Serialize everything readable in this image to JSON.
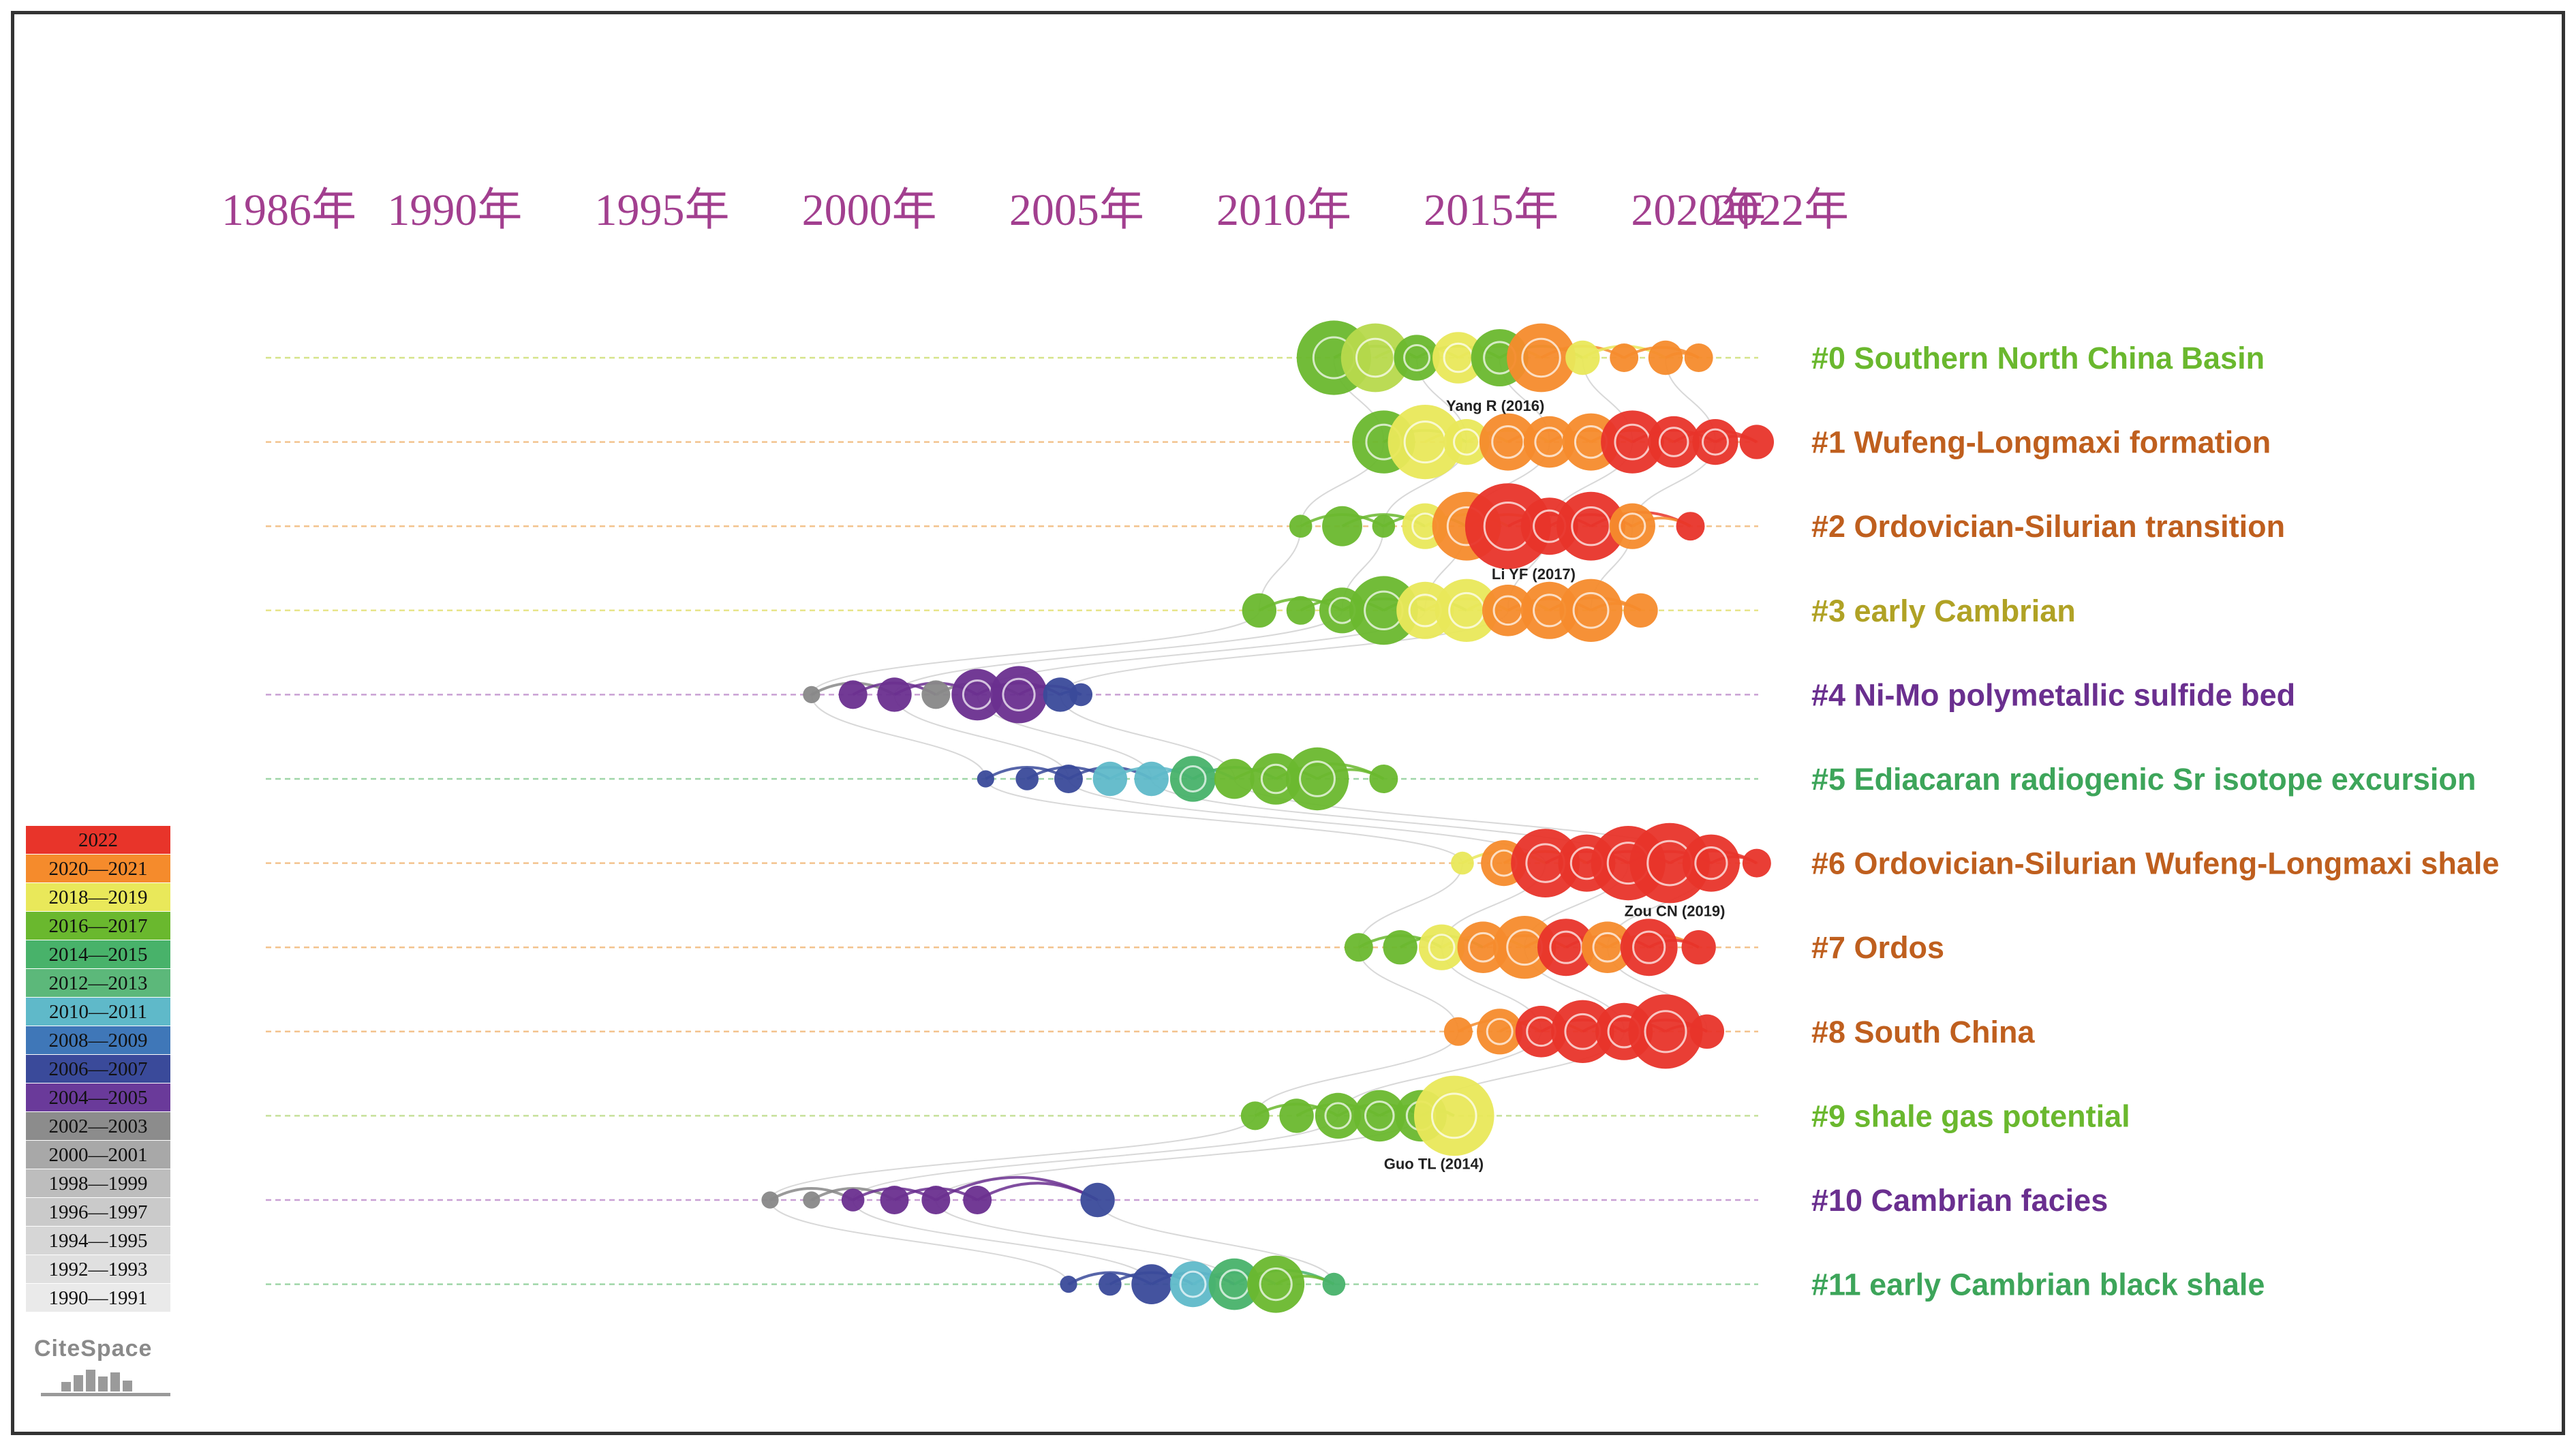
{
  "timeline": {
    "year_labels": [
      {
        "text": "1986年",
        "year": 1986
      },
      {
        "text": "1990年",
        "year": 1990
      },
      {
        "text": "1995年",
        "year": 1995
      },
      {
        "text": "2000年",
        "year": 2000
      },
      {
        "text": "2005年",
        "year": 2005
      },
      {
        "text": "2010年",
        "year": 2010
      },
      {
        "text": "2015年",
        "year": 2015
      },
      {
        "text": "2020年",
        "year": 2020
      },
      {
        "text": "2022年",
        "year": 2022
      }
    ],
    "clusters": [
      {
        "label": "#0 Southern North China Basin",
        "color": "#6ab82e",
        "line_color": "#d6e48a",
        "span": [
          2011.5,
          2020.5
        ],
        "nodes": [
          [
            2011.6,
            1.3,
            "#6ab82e"
          ],
          [
            2012.6,
            1.2,
            "#b7d94c"
          ],
          [
            2013.6,
            0.8,
            "#6ab82e"
          ],
          [
            2014.6,
            0.9,
            "#e9e85a"
          ],
          [
            2015.6,
            1.0,
            "#6ab82e"
          ],
          [
            2016.6,
            1.2,
            "#f58b2c"
          ],
          [
            2017.6,
            0.6,
            "#e9e85a"
          ],
          [
            2018.6,
            0.5,
            "#f58b2c"
          ],
          [
            2019.6,
            0.6,
            "#f58b2c"
          ],
          [
            2020.4,
            0.5,
            "#f58b2c"
          ]
        ]
      },
      {
        "label": "#1 Wufeng-Longmaxi formation",
        "color": "#bf5f1e",
        "line_color": "#f3c38e",
        "span": [
          2012.5,
          2022.0
        ],
        "nodes": [
          [
            2012.8,
            1.1,
            "#6ab82e"
          ],
          [
            2013.8,
            1.3,
            "#e9e85a"
          ],
          [
            2014.8,
            0.8,
            "#e9e85a"
          ],
          [
            2015.8,
            1.0,
            "#f58b2c"
          ],
          [
            2016.8,
            0.9,
            "#f58b2c"
          ],
          [
            2017.8,
            1.0,
            "#f58b2c"
          ],
          [
            2018.8,
            1.1,
            "#e8342a"
          ],
          [
            2019.8,
            0.9,
            "#e8342a"
          ],
          [
            2020.8,
            0.8,
            "#e8342a"
          ],
          [
            2021.8,
            0.6,
            "#e8342a"
          ]
        ]
      },
      {
        "label": "#2 Ordovician-Silurian transition",
        "color": "#bf5f1e",
        "line_color": "#f3c38e",
        "span": [
          2010.7,
          2020.8
        ],
        "nodes": [
          [
            2010.8,
            0.4,
            "#6ab82e"
          ],
          [
            2011.8,
            0.7,
            "#6ab82e"
          ],
          [
            2012.8,
            0.4,
            "#6ab82e"
          ],
          [
            2013.8,
            0.8,
            "#e9e85a"
          ],
          [
            2014.8,
            1.2,
            "#f58b2c"
          ],
          [
            2015.8,
            1.5,
            "#e8342a"
          ],
          [
            2016.8,
            1.0,
            "#e8342a"
          ],
          [
            2017.8,
            1.2,
            "#e8342a"
          ],
          [
            2018.8,
            0.8,
            "#f58b2c"
          ],
          [
            2020.2,
            0.5,
            "#e8342a"
          ]
        ]
      },
      {
        "label": "#3 early Cambrian",
        "color": "#b0a225",
        "line_color": "#e7e58a",
        "span": [
          2009.5,
          2019.2
        ],
        "nodes": [
          [
            2009.8,
            0.6,
            "#6ab82e"
          ],
          [
            2010.8,
            0.5,
            "#6ab82e"
          ],
          [
            2011.8,
            0.8,
            "#6ab82e"
          ],
          [
            2012.8,
            1.2,
            "#6ab82e"
          ],
          [
            2013.8,
            1.0,
            "#e9e85a"
          ],
          [
            2014.8,
            1.1,
            "#e9e85a"
          ],
          [
            2015.8,
            0.9,
            "#f58b2c"
          ],
          [
            2016.8,
            1.0,
            "#f58b2c"
          ],
          [
            2017.8,
            1.1,
            "#f58b2c"
          ],
          [
            2019.0,
            0.6,
            "#f58b2c"
          ]
        ]
      },
      {
        "label": "#4 Ni-Mo polymetallic sulfide bed",
        "color": "#6a2f8f",
        "line_color": "#c9a0d4",
        "span": [
          1998.8,
          2005.6
        ],
        "nodes": [
          [
            1999.0,
            0.3,
            "#888888"
          ],
          [
            2000.0,
            0.5,
            "#6a2f8f"
          ],
          [
            2001.0,
            0.6,
            "#6a2f8f"
          ],
          [
            2002.0,
            0.5,
            "#888888"
          ],
          [
            2003.0,
            0.9,
            "#6a2f8f"
          ],
          [
            2004.0,
            1.0,
            "#6a2f8f"
          ],
          [
            2005.0,
            0.6,
            "#3a4a9a"
          ],
          [
            2005.5,
            0.4,
            "#3a4a9a"
          ]
        ]
      },
      {
        "label": "#5 Ediacaran radiogenic Sr isotope excursion",
        "color": "#3da55a",
        "line_color": "#9fd6a8",
        "span": [
          2003.0,
          2013.0
        ],
        "nodes": [
          [
            2003.2,
            0.3,
            "#3a4a9a"
          ],
          [
            2004.2,
            0.4,
            "#3a4a9a"
          ],
          [
            2005.2,
            0.5,
            "#3a4a9a"
          ],
          [
            2006.2,
            0.6,
            "#5fb9c9"
          ],
          [
            2007.2,
            0.6,
            "#5fb9c9"
          ],
          [
            2008.2,
            0.8,
            "#48b26a"
          ],
          [
            2009.2,
            0.7,
            "#6ab82e"
          ],
          [
            2010.2,
            0.9,
            "#6ab82e"
          ],
          [
            2011.2,
            1.1,
            "#6ab82e"
          ],
          [
            2012.8,
            0.5,
            "#6ab82e"
          ]
        ]
      },
      {
        "label": "#6 Ordovician-Silurian Wufeng-Longmaxi shale",
        "color": "#bf5f1e",
        "line_color": "#f3c38e",
        "span": [
          2014.5,
          2022.0
        ],
        "nodes": [
          [
            2014.7,
            0.4,
            "#e9e85a"
          ],
          [
            2015.7,
            0.8,
            "#f58b2c"
          ],
          [
            2016.7,
            1.2,
            "#e8342a"
          ],
          [
            2017.7,
            1.0,
            "#e8342a"
          ],
          [
            2018.7,
            1.3,
            "#e8342a"
          ],
          [
            2019.7,
            1.4,
            "#e8342a"
          ],
          [
            2020.7,
            1.0,
            "#e8342a"
          ],
          [
            2021.8,
            0.5,
            "#e8342a"
          ]
        ]
      },
      {
        "label": "#7 Ordos",
        "color": "#bf5f1e",
        "line_color": "#f3c38e",
        "span": [
          2012.0,
          2020.8
        ],
        "nodes": [
          [
            2012.2,
            0.5,
            "#6ab82e"
          ],
          [
            2013.2,
            0.6,
            "#6ab82e"
          ],
          [
            2014.2,
            0.8,
            "#e9e85a"
          ],
          [
            2015.2,
            0.9,
            "#f58b2c"
          ],
          [
            2016.2,
            1.1,
            "#f58b2c"
          ],
          [
            2017.2,
            1.0,
            "#e8342a"
          ],
          [
            2018.2,
            0.9,
            "#f58b2c"
          ],
          [
            2019.2,
            1.0,
            "#e8342a"
          ],
          [
            2020.4,
            0.6,
            "#e8342a"
          ]
        ]
      },
      {
        "label": "#8 South China",
        "color": "#bf5f1e",
        "line_color": "#f3c38e",
        "span": [
          2014.4,
          2021.0
        ],
        "nodes": [
          [
            2014.6,
            0.5,
            "#f58b2c"
          ],
          [
            2015.6,
            0.8,
            "#f58b2c"
          ],
          [
            2016.6,
            0.9,
            "#e8342a"
          ],
          [
            2017.6,
            1.1,
            "#e8342a"
          ],
          [
            2018.6,
            1.0,
            "#e8342a"
          ],
          [
            2019.6,
            1.3,
            "#e8342a"
          ],
          [
            2020.6,
            0.6,
            "#e8342a"
          ]
        ]
      },
      {
        "label": "#9 shale gas potential",
        "color": "#6ab82e",
        "line_color": "#c6e09a",
        "span": [
          2009.5,
          2014.8
        ],
        "nodes": [
          [
            2009.7,
            0.5,
            "#6ab82e"
          ],
          [
            2010.7,
            0.6,
            "#6ab82e"
          ],
          [
            2011.7,
            0.8,
            "#6ab82e"
          ],
          [
            2012.7,
            0.9,
            "#6ab82e"
          ],
          [
            2013.7,
            0.9,
            "#6ab82e"
          ],
          [
            2014.5,
            1.4,
            "#e9e85a"
          ]
        ]
      },
      {
        "label": "#10 Cambrian facies",
        "color": "#6a2f8f",
        "line_color": "#c9a0d4",
        "span": [
          1997.8,
          2006.0
        ],
        "nodes": [
          [
            1998.0,
            0.3,
            "#888888"
          ],
          [
            1999.0,
            0.3,
            "#888888"
          ],
          [
            2000.0,
            0.4,
            "#6a2f8f"
          ],
          [
            2001.0,
            0.5,
            "#6a2f8f"
          ],
          [
            2002.0,
            0.5,
            "#6a2f8f"
          ],
          [
            2003.0,
            0.5,
            "#6a2f8f"
          ],
          [
            2005.9,
            0.6,
            "#3a4a9a"
          ]
        ]
      },
      {
        "label": "#11 early Cambrian black shale",
        "color": "#3da55a",
        "line_color": "#9fd6a8",
        "span": [
          2005.0,
          2011.8
        ],
        "nodes": [
          [
            2005.2,
            0.3,
            "#3a4a9a"
          ],
          [
            2006.2,
            0.4,
            "#3a4a9a"
          ],
          [
            2007.2,
            0.7,
            "#3a4a9a"
          ],
          [
            2008.2,
            0.8,
            "#5fb9c9"
          ],
          [
            2009.2,
            0.9,
            "#48b26a"
          ],
          [
            2010.2,
            1.0,
            "#6ab82e"
          ],
          [
            2011.6,
            0.4,
            "#48b26a"
          ]
        ]
      }
    ],
    "annotations": [
      {
        "text": "Yang R (2016)",
        "cluster": 0,
        "year": 2014.8
      },
      {
        "text": "Li YF (2017)",
        "cluster": 2,
        "year": 2015.9
      },
      {
        "text": "Zou CN (2019)",
        "cluster": 6,
        "year": 2019.1
      },
      {
        "text": "Guo TL (2014)",
        "cluster": 9,
        "year": 2013.3
      }
    ]
  },
  "legend": {
    "items": [
      {
        "text": "2022",
        "color": "#e8342a"
      },
      {
        "text": "2020—2021",
        "color": "#f58b2c"
      },
      {
        "text": "2018—2019",
        "color": "#e9e85a"
      },
      {
        "text": "2016—2017",
        "color": "#6ab82e"
      },
      {
        "text": "2014—2015",
        "color": "#48b26a"
      },
      {
        "text": "2012—2013",
        "color": "#5cb87a"
      },
      {
        "text": "2010—2011",
        "color": "#5fb9c9"
      },
      {
        "text": "2008—2009",
        "color": "#3f77b8"
      },
      {
        "text": "2006—2007",
        "color": "#3a4a9a"
      },
      {
        "text": "2004—2005",
        "color": "#6a3a9a"
      },
      {
        "text": "2002—2003",
        "color": "#8c8c8c"
      },
      {
        "text": "2000—2001",
        "color": "#a8a8a8"
      },
      {
        "text": "1998—1999",
        "color": "#bdbdbd"
      },
      {
        "text": "1996—1997",
        "color": "#cacaca"
      },
      {
        "text": "1994—1995",
        "color": "#d6d6d6"
      },
      {
        "text": "1992—1993",
        "color": "#e0e0e0"
      },
      {
        "text": "1990—1991",
        "color": "#eaeaea"
      }
    ]
  },
  "logo": {
    "text": "CiteSpace"
  }
}
